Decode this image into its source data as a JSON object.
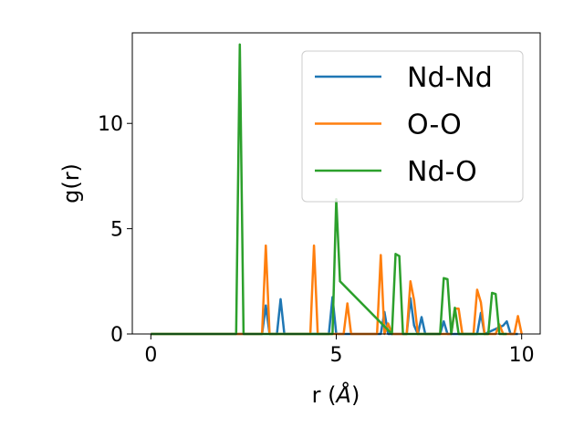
{
  "chart_data": {
    "type": "line",
    "title": "",
    "xlabel": "r (",
    "xlabel_unit": "Å",
    "xlabel_close": ")",
    "ylabel": "g(r)",
    "xlim": [
      -0.5,
      10.5
    ],
    "ylim": [
      0,
      14.3
    ],
    "xticks": [
      0,
      5,
      10
    ],
    "yticks": [
      0,
      5,
      10
    ],
    "grid": false,
    "legend_position": "top-right",
    "series": [
      {
        "name": "Nd-Nd",
        "color": "#1f77b4",
        "x": [
          0,
          3.0,
          3.1,
          3.2,
          3.4,
          3.5,
          3.6,
          4.8,
          4.9,
          5.0,
          6.2,
          6.3,
          6.4,
          6.9,
          7.0,
          7.1,
          7.2,
          7.3,
          7.4,
          7.8,
          7.9,
          8.0,
          8.8,
          8.9,
          9.0,
          9.5,
          9.6,
          9.7,
          9.8,
          9.9
        ],
        "y": [
          0,
          0,
          1.35,
          0,
          0,
          1.65,
          0,
          0,
          1.75,
          0,
          0,
          1.05,
          0,
          0,
          1.7,
          0.4,
          0,
          0.8,
          0,
          0,
          0.6,
          0,
          0,
          1.0,
          0,
          0.4,
          0.6,
          0,
          0,
          0
        ]
      },
      {
        "name": "O-O",
        "color": "#ff7f0e",
        "x": [
          0,
          3.0,
          3.1,
          3.2,
          4.3,
          4.4,
          4.5,
          4.6,
          4.7,
          5.2,
          5.3,
          5.4,
          6.1,
          6.2,
          6.3,
          6.4,
          6.5,
          6.9,
          7.0,
          7.1,
          7.2,
          8.1,
          8.2,
          8.3,
          8.4,
          8.7,
          8.8,
          8.9,
          9.0,
          9.3,
          9.4,
          9.5,
          9.8,
          9.9,
          10.0
        ],
        "y": [
          0,
          0,
          4.2,
          0,
          0,
          4.2,
          0,
          0,
          0,
          0,
          1.45,
          0,
          0,
          3.75,
          0,
          0.5,
          0,
          0,
          2.5,
          1.6,
          0,
          0,
          1.2,
          1.2,
          0,
          0,
          2.1,
          1.5,
          0,
          0,
          0.45,
          0,
          0,
          0.85,
          0
        ]
      },
      {
        "name": "Nd-O",
        "color": "#2ca02c",
        "x": [
          0,
          2.3,
          2.4,
          2.5,
          4.9,
          5.0,
          5.1,
          6.5,
          6.6,
          6.7,
          6.8,
          7.8,
          7.9,
          8.0,
          8.1,
          8.2,
          8.3,
          9.1,
          9.2,
          9.3,
          9.4,
          9.5,
          9.6
        ],
        "y": [
          0,
          0,
          13.75,
          0,
          0,
          6.4,
          2.5,
          0,
          3.8,
          3.7,
          0,
          0,
          2.65,
          2.6,
          0,
          1.25,
          0,
          0,
          1.95,
          1.9,
          0,
          0,
          0
        ]
      }
    ]
  }
}
